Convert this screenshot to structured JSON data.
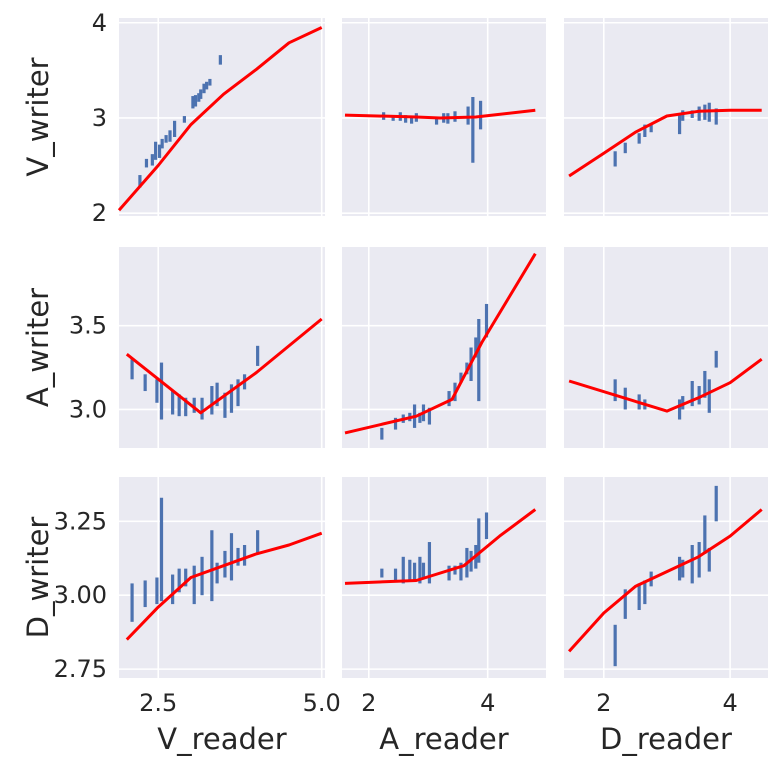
{
  "chart_data": {
    "type": "pairgrid-regression",
    "colors": {
      "background": "#eaeaf2",
      "grid": "#ffffff",
      "points": "#4c72b0",
      "fit": "#ff0000"
    },
    "columns": [
      {
        "label": "V_reader",
        "xlim": [
          1.9,
          5.05
        ],
        "ticks": [
          2.5,
          5.0
        ],
        "tick_labels": [
          "2.5",
          "5.0"
        ]
      },
      {
        "label": "A_reader",
        "xlim": [
          1.55,
          4.98
        ],
        "ticks": [
          2,
          4
        ],
        "tick_labels": [
          "2",
          "4"
        ]
      },
      {
        "label": "D_reader",
        "xlim": [
          1.37,
          4.6
        ],
        "ticks": [
          2,
          4
        ],
        "tick_labels": [
          "2",
          "4"
        ]
      }
    ],
    "rows": [
      {
        "label": "V_writer",
        "ylim": [
          1.97,
          4.05
        ],
        "ticks": [
          2,
          3,
          4
        ],
        "tick_labels": [
          "2",
          "3",
          "4"
        ]
      },
      {
        "label": "A_writer",
        "ylim": [
          2.77,
          3.97
        ],
        "ticks": [
          3.0,
          3.5
        ],
        "tick_labels": [
          "3.0",
          "3.5"
        ]
      },
      {
        "label": "D_writer",
        "ylim": [
          2.72,
          3.4
        ],
        "ticks": [
          2.75,
          3.0,
          3.25
        ],
        "tick_labels": [
          "2.75",
          "3.00",
          "3.25"
        ]
      }
    ],
    "panels": [
      {
        "row": 0,
        "col": 0,
        "bins": [
          [
            2.22,
            2.27,
            2.4
          ],
          [
            2.32,
            2.48,
            2.57
          ],
          [
            2.41,
            2.5,
            2.62
          ],
          [
            2.46,
            2.56,
            2.75
          ],
          [
            2.52,
            2.58,
            2.72
          ],
          [
            2.56,
            2.68,
            2.78
          ],
          [
            2.62,
            2.74,
            2.82
          ],
          [
            2.68,
            2.75,
            2.87
          ],
          [
            2.75,
            2.8,
            2.97
          ],
          [
            2.9,
            2.95,
            3.02
          ],
          [
            3.03,
            3.1,
            3.23
          ],
          [
            3.07,
            3.12,
            3.24
          ],
          [
            3.12,
            3.17,
            3.26
          ],
          [
            3.15,
            3.2,
            3.3
          ],
          [
            3.2,
            3.26,
            3.36
          ],
          [
            3.24,
            3.3,
            3.38
          ],
          [
            3.29,
            3.34,
            3.41
          ],
          [
            3.45,
            3.56,
            3.66
          ]
        ],
        "fit": [
          [
            1.9,
            2.03
          ],
          [
            2.5,
            2.5
          ],
          [
            3.0,
            2.93
          ],
          [
            3.5,
            3.25
          ],
          [
            4.0,
            3.51
          ],
          [
            4.5,
            3.79
          ],
          [
            5.0,
            3.95
          ]
        ]
      },
      {
        "row": 0,
        "col": 1,
        "bins": [
          [
            2.25,
            2.98,
            3.06
          ],
          [
            2.41,
            2.97,
            3.03
          ],
          [
            2.53,
            2.97,
            3.06
          ],
          [
            2.62,
            2.95,
            3.03
          ],
          [
            2.72,
            2.94,
            3.01
          ],
          [
            2.8,
            2.96,
            3.05
          ],
          [
            3.14,
            2.93,
            3.01
          ],
          [
            3.26,
            2.95,
            3.05
          ],
          [
            3.33,
            2.94,
            3.05
          ],
          [
            3.45,
            2.96,
            3.07
          ],
          [
            3.67,
            2.93,
            3.12
          ],
          [
            3.75,
            2.53,
            3.22
          ],
          [
            3.88,
            2.88,
            3.18
          ]
        ],
        "fit": [
          [
            1.6,
            3.03
          ],
          [
            2.8,
            3.01
          ],
          [
            3.2,
            3.0
          ],
          [
            3.8,
            3.01
          ],
          [
            4.8,
            3.08
          ]
        ]
      },
      {
        "row": 0,
        "col": 2,
        "bins": [
          [
            2.18,
            2.49,
            2.65
          ],
          [
            2.34,
            2.63,
            2.74
          ],
          [
            2.56,
            2.73,
            2.84
          ],
          [
            2.65,
            2.8,
            2.93
          ],
          [
            2.75,
            2.85,
            2.94
          ],
          [
            3.2,
            2.83,
            3.03
          ],
          [
            3.25,
            2.97,
            3.08
          ],
          [
            3.4,
            3.0,
            3.08
          ],
          [
            3.51,
            2.97,
            3.12
          ],
          [
            3.6,
            2.98,
            3.14
          ],
          [
            3.67,
            2.96,
            3.16
          ],
          [
            3.78,
            2.93,
            3.1
          ]
        ],
        "fit": [
          [
            1.45,
            2.39
          ],
          [
            2.0,
            2.63
          ],
          [
            2.5,
            2.85
          ],
          [
            3.0,
            3.02
          ],
          [
            3.5,
            3.07
          ],
          [
            4.0,
            3.08
          ],
          [
            4.5,
            3.08
          ]
        ]
      },
      {
        "row": 1,
        "col": 0,
        "bins": [
          [
            2.1,
            3.18,
            3.3
          ],
          [
            2.3,
            3.11,
            3.21
          ],
          [
            2.48,
            3.04,
            3.18
          ],
          [
            2.55,
            2.94,
            3.28
          ],
          [
            2.72,
            2.97,
            3.11
          ],
          [
            2.82,
            2.96,
            3.09
          ],
          [
            2.92,
            2.96,
            3.07
          ],
          [
            3.05,
            2.98,
            3.07
          ],
          [
            3.17,
            2.94,
            3.07
          ],
          [
            3.32,
            2.97,
            3.14
          ],
          [
            3.4,
            3.02,
            3.16
          ],
          [
            3.52,
            2.95,
            3.1
          ],
          [
            3.62,
            2.98,
            3.15
          ],
          [
            3.72,
            3.02,
            3.18
          ],
          [
            3.82,
            3.12,
            3.21
          ],
          [
            4.02,
            3.26,
            3.38
          ]
        ],
        "fit": [
          [
            2.02,
            3.33
          ],
          [
            3.15,
            2.98
          ],
          [
            4.0,
            3.22
          ],
          [
            5.0,
            3.54
          ]
        ]
      },
      {
        "row": 1,
        "col": 1,
        "bins": [
          [
            2.22,
            2.82,
            2.89
          ],
          [
            2.45,
            2.88,
            2.95
          ],
          [
            2.58,
            2.92,
            2.97
          ],
          [
            2.69,
            2.93,
            2.98
          ],
          [
            2.77,
            2.89,
            3.03
          ],
          [
            2.86,
            2.92,
            2.98
          ],
          [
            2.92,
            2.93,
            3.03
          ],
          [
            3.02,
            2.91,
            3.01
          ],
          [
            3.35,
            3.02,
            3.11
          ],
          [
            3.45,
            3.05,
            3.16
          ],
          [
            3.55,
            3.16,
            3.22
          ],
          [
            3.65,
            3.21,
            3.28
          ],
          [
            3.72,
            3.17,
            3.37
          ],
          [
            3.8,
            3.31,
            3.43
          ],
          [
            3.85,
            3.05,
            3.54
          ],
          [
            3.98,
            3.43,
            3.63
          ]
        ],
        "fit": [
          [
            1.6,
            2.86
          ],
          [
            2.8,
            2.96
          ],
          [
            3.4,
            3.06
          ],
          [
            3.9,
            3.4
          ],
          [
            4.8,
            3.93
          ]
        ]
      },
      {
        "row": 1,
        "col": 2,
        "bins": [
          [
            2.18,
            3.05,
            3.18
          ],
          [
            2.34,
            3.0,
            3.13
          ],
          [
            2.56,
            3.0,
            3.09
          ],
          [
            2.65,
            3.0,
            3.06
          ],
          [
            3.2,
            2.94,
            3.06
          ],
          [
            3.25,
            3.0,
            3.08
          ],
          [
            3.4,
            3.02,
            3.17
          ],
          [
            3.51,
            3.03,
            3.14
          ],
          [
            3.6,
            3.07,
            3.23
          ],
          [
            3.67,
            2.98,
            3.18
          ],
          [
            3.78,
            3.25,
            3.35
          ]
        ],
        "fit": [
          [
            1.45,
            3.17
          ],
          [
            3.0,
            2.99
          ],
          [
            3.5,
            3.07
          ],
          [
            4.0,
            3.16
          ],
          [
            4.5,
            3.3
          ]
        ]
      },
      {
        "row": 2,
        "col": 0,
        "bins": [
          [
            2.1,
            2.91,
            3.04
          ],
          [
            2.3,
            2.96,
            3.05
          ],
          [
            2.48,
            2.97,
            3.06
          ],
          [
            2.55,
            2.98,
            3.33
          ],
          [
            2.72,
            2.97,
            3.07
          ],
          [
            2.82,
            3.01,
            3.09
          ],
          [
            2.92,
            3.03,
            3.09
          ],
          [
            3.05,
            2.97,
            3.1
          ],
          [
            3.17,
            3.0,
            3.13
          ],
          [
            3.32,
            2.98,
            3.22
          ],
          [
            3.4,
            3.04,
            3.11
          ],
          [
            3.52,
            3.06,
            3.15
          ],
          [
            3.62,
            3.05,
            3.21
          ],
          [
            3.72,
            3.1,
            3.16
          ],
          [
            3.82,
            3.1,
            3.17
          ],
          [
            4.02,
            3.14,
            3.22
          ]
        ],
        "fit": [
          [
            2.02,
            2.85
          ],
          [
            2.5,
            2.96
          ],
          [
            3.0,
            3.06
          ],
          [
            3.5,
            3.1
          ],
          [
            4.0,
            3.14
          ],
          [
            4.5,
            3.17
          ],
          [
            5.0,
            3.21
          ]
        ]
      },
      {
        "row": 2,
        "col": 1,
        "bins": [
          [
            2.22,
            3.06,
            3.09
          ],
          [
            2.45,
            3.05,
            3.09
          ],
          [
            2.58,
            3.04,
            3.13
          ],
          [
            2.69,
            3.05,
            3.12
          ],
          [
            2.77,
            3.05,
            3.11
          ],
          [
            2.86,
            3.04,
            3.13
          ],
          [
            2.92,
            3.06,
            3.11
          ],
          [
            3.02,
            3.04,
            3.18
          ],
          [
            3.35,
            3.05,
            3.1
          ],
          [
            3.45,
            3.07,
            3.1
          ],
          [
            3.55,
            3.05,
            3.11
          ],
          [
            3.65,
            3.06,
            3.16
          ],
          [
            3.72,
            3.08,
            3.15
          ],
          [
            3.8,
            3.09,
            3.17
          ],
          [
            3.85,
            3.11,
            3.26
          ],
          [
            3.98,
            3.19,
            3.28
          ]
        ],
        "fit": [
          [
            1.6,
            3.04
          ],
          [
            2.8,
            3.05
          ],
          [
            3.6,
            3.1
          ],
          [
            4.2,
            3.2
          ],
          [
            4.8,
            3.29
          ]
        ]
      },
      {
        "row": 2,
        "col": 2,
        "bins": [
          [
            2.18,
            2.76,
            2.9
          ],
          [
            2.34,
            2.92,
            3.02
          ],
          [
            2.56,
            2.95,
            3.04
          ],
          [
            2.65,
            2.97,
            3.05
          ],
          [
            2.75,
            3.03,
            3.08
          ],
          [
            3.2,
            3.05,
            3.13
          ],
          [
            3.25,
            3.06,
            3.12
          ],
          [
            3.4,
            3.04,
            3.17
          ],
          [
            3.51,
            3.06,
            3.18
          ],
          [
            3.6,
            3.14,
            3.27
          ],
          [
            3.67,
            3.08,
            3.16
          ],
          [
            3.78,
            3.25,
            3.37
          ]
        ],
        "fit": [
          [
            1.45,
            2.81
          ],
          [
            2.0,
            2.94
          ],
          [
            2.5,
            3.03
          ],
          [
            3.0,
            3.08
          ],
          [
            3.5,
            3.13
          ],
          [
            4.0,
            3.2
          ],
          [
            4.5,
            3.29
          ]
        ]
      }
    ]
  }
}
